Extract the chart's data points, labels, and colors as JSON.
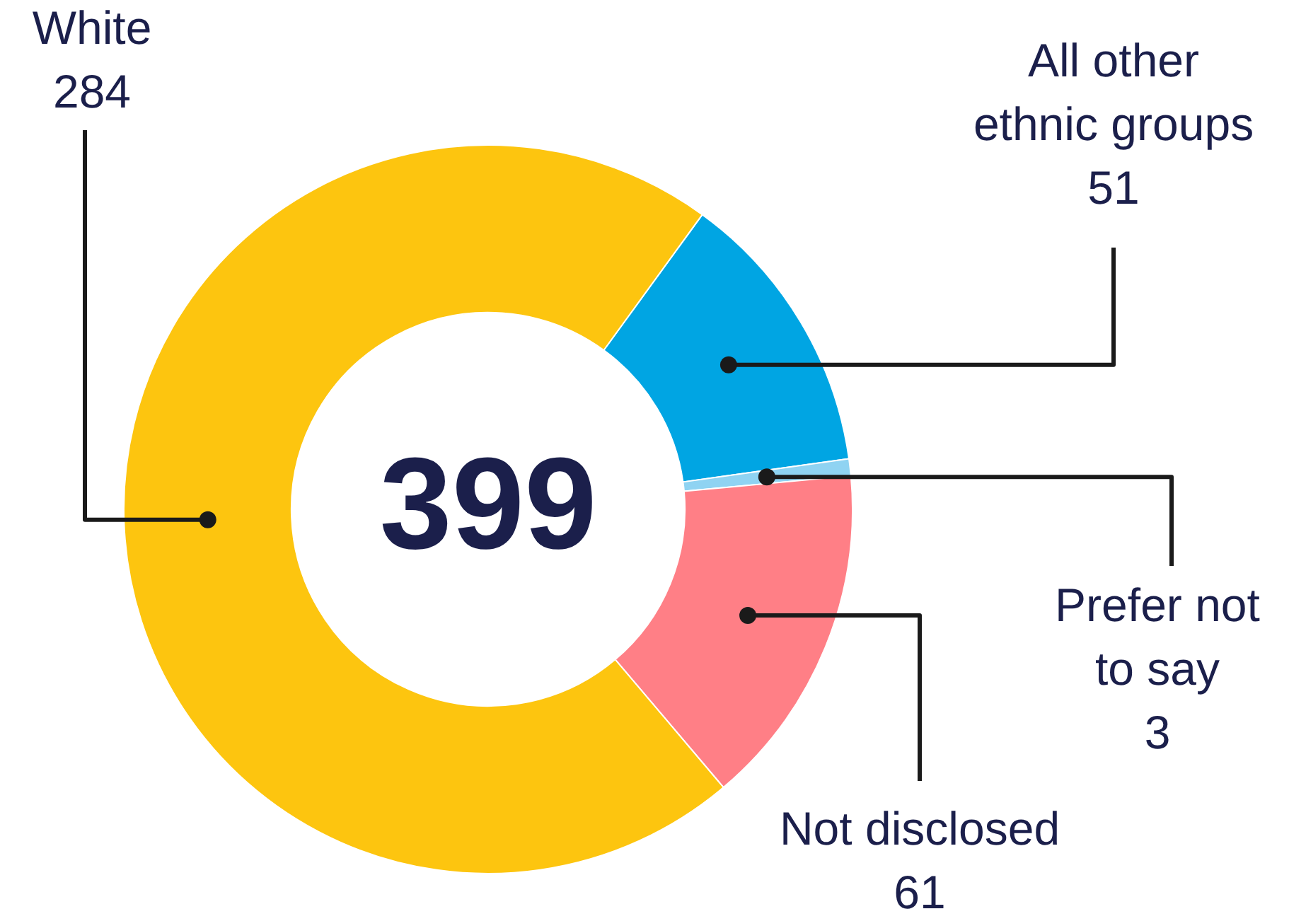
{
  "chart_data": {
    "type": "donut",
    "categories": [
      "All other ethnic groups",
      "Prefer not to say",
      "Not disclosed",
      "White"
    ],
    "values": [
      51,
      3,
      61,
      284
    ],
    "colors": [
      "#00a5e3",
      "#8fd3f2",
      "#ff7f86",
      "#fdc50f"
    ],
    "data_labels": true,
    "legend": false,
    "annotations": [
      "399"
    ]
  }
}
